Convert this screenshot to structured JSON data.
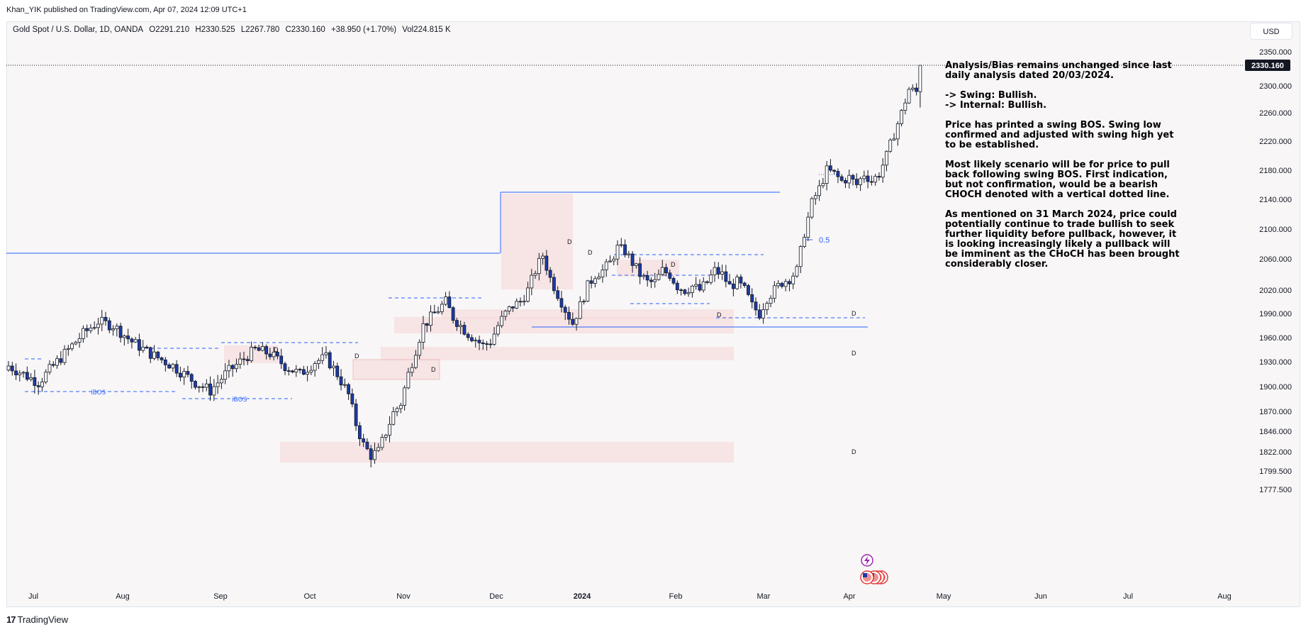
{
  "publisher": "Khan_YIK published on TradingView.com, Apr 07, 2024 12:09 UTC+1",
  "symbol": {
    "name": "Gold Spot / U.S. Dollar, 1D, OANDA",
    "open": "O2291.210",
    "high": "H2330.525",
    "low": "L2267.780",
    "close": "C2330.160",
    "change": "+38.950 (+1.70%)",
    "volume": "Vol224.815 K"
  },
  "currency_button": "USD",
  "last_price_label": "2330.160",
  "brand": "TradingView",
  "note_paragraphs": [
    "Analysis/Bias remains unchanged since last daily analysis dated 20/03/2024.",
    "-> Swing: Bullish.\n-> Internal: Bullish.",
    "Price has printed a swing BOS.  Swing low confirmed and adjusted with swing high yet to be established.",
    "Most likely scenario will be for price to pull back following swing BOS.  First indication, but not confirmation, would be a bearish CHOCH denoted with a vertical dotted line.",
    "As mentioned on 31 March 2024, price could potentially continue to trade bullish to seek further liquidity before pullback, however, it is looking increasingly likely a pullback will be imminent as the CHoCH has been brought considerably closer."
  ],
  "annotations": {
    "ibos": "iBOS",
    "fib": "0.5",
    "demand": "D"
  },
  "colors": {
    "up_candle": "#ffffff",
    "down_candle": "#1c3aa9",
    "wick": "#131722",
    "structure_line": "#2962ff",
    "zone_fill": "#f7dede",
    "background": "#f8f6f7"
  },
  "chart_data": {
    "type": "candlestick",
    "title": "Gold Spot / U.S. Dollar, 1D, OANDA",
    "y_ticks": [
      2350,
      2300,
      2260,
      2220,
      2180,
      2140,
      2100,
      2060,
      2020,
      1990,
      1960,
      1930,
      1900,
      1870,
      1846,
      1822,
      1799.5,
      1777.5
    ],
    "y_tick_labels": [
      "2350.000",
      "2300.000",
      "2260.000",
      "2220.000",
      "2180.000",
      "2140.000",
      "2100.000",
      "2060.000",
      "2020.000",
      "1990.000",
      "1960.000",
      "1930.000",
      "1900.000",
      "1870.000",
      "1846.000",
      "1822.000",
      "1799.500",
      "1777.500"
    ],
    "ylim": [
      1770,
      2365
    ],
    "x_labels": [
      "Jul",
      "Aug",
      "Sep",
      "Oct",
      "Nov",
      "Dec",
      "2024",
      "Feb",
      "Mar",
      "Apr",
      "May",
      "Jun",
      "Jul",
      "Aug"
    ],
    "x_label_bold": "2024",
    "last_close": 2330.16,
    "anchors": [
      [
        0,
        1925
      ],
      [
        4,
        1915
      ],
      [
        8,
        1905
      ],
      [
        12,
        1925
      ],
      [
        16,
        1945
      ],
      [
        20,
        1965
      ],
      [
        24,
        1980
      ],
      [
        28,
        1975
      ],
      [
        33,
        1955
      ],
      [
        38,
        1940
      ],
      [
        44,
        1925
      ],
      [
        50,
        1905
      ],
      [
        54,
        1895
      ],
      [
        58,
        1915
      ],
      [
        62,
        1930
      ],
      [
        66,
        1945
      ],
      [
        70,
        1940
      ],
      [
        74,
        1925
      ],
      [
        78,
        1915
      ],
      [
        82,
        1930
      ],
      [
        85,
        1935
      ],
      [
        88,
        1915
      ],
      [
        91,
        1890
      ],
      [
        93,
        1855
      ],
      [
        95,
        1830
      ],
      [
        97,
        1818
      ],
      [
        99,
        1822
      ],
      [
        101,
        1845
      ],
      [
        103,
        1868
      ],
      [
        105,
        1880
      ],
      [
        107,
        1915
      ],
      [
        109,
        1945
      ],
      [
        111,
        1975
      ],
      [
        113,
        1985
      ],
      [
        115,
        1995
      ],
      [
        117,
        2005
      ],
      [
        119,
        1985
      ],
      [
        121,
        1975
      ],
      [
        123,
        1965
      ],
      [
        125,
        1958
      ],
      [
        127,
        1950
      ],
      [
        129,
        1955
      ],
      [
        131,
        1975
      ],
      [
        133,
        1990
      ],
      [
        135,
        2000
      ],
      [
        137,
        2005
      ],
      [
        139,
        2020
      ],
      [
        141,
        2045
      ],
      [
        143,
        2065
      ],
      [
        145,
        2035
      ],
      [
        147,
        2015
      ],
      [
        149,
        1995
      ],
      [
        151,
        1978
      ],
      [
        153,
        2000
      ],
      [
        155,
        2025
      ],
      [
        157,
        2040
      ],
      [
        159,
        2045
      ],
      [
        161,
        2055
      ],
      [
        163,
        2075
      ],
      [
        165,
        2070
      ],
      [
        167,
        2055
      ],
      [
        169,
        2040
      ],
      [
        171,
        2030
      ],
      [
        173,
        2030
      ],
      [
        175,
        2045
      ],
      [
        177,
        2040
      ],
      [
        179,
        2025
      ],
      [
        181,
        2020
      ],
      [
        183,
        2025
      ],
      [
        185,
        2020
      ],
      [
        187,
        2030
      ],
      [
        189,
        2045
      ],
      [
        191,
        2040
      ],
      [
        193,
        2025
      ],
      [
        195,
        2030
      ],
      [
        197,
        2020
      ],
      [
        199,
        2000
      ],
      [
        201,
        1990
      ],
      [
        203,
        2010
      ],
      [
        205,
        2020
      ],
      [
        207,
        2030
      ],
      [
        209,
        2035
      ],
      [
        211,
        2045
      ],
      [
        213,
        2095
      ],
      [
        215,
        2135
      ],
      [
        217,
        2155
      ],
      [
        219,
        2180
      ],
      [
        221,
        2175
      ],
      [
        223,
        2165
      ],
      [
        225,
        2170
      ],
      [
        227,
        2160
      ],
      [
        229,
        2175
      ],
      [
        231,
        2165
      ],
      [
        233,
        2175
      ],
      [
        235,
        2200
      ],
      [
        237,
        2230
      ],
      [
        239,
        2260
      ],
      [
        241,
        2295
      ],
      [
        243,
        2291
      ],
      [
        244,
        2330
      ]
    ]
  }
}
